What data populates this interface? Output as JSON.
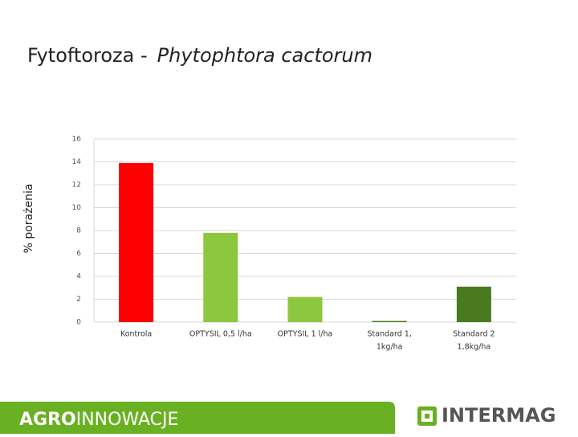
{
  "header": {
    "title": "Fytoftoroza -",
    "title_italic": "Phytophtora cactorum"
  },
  "chart_data": {
    "type": "bar",
    "y_label": "% porażenia",
    "categories": [
      [
        "Kontrola"
      ],
      [
        "OPTYSIL 0,5 l/ha"
      ],
      [
        "OPTYSIL 1 l/ha"
      ],
      [
        "Standard 1,",
        "1kg/ha"
      ],
      [
        "Standard 2",
        "1,8kg/ha"
      ]
    ],
    "values": [
      13.9,
      7.8,
      2.2,
      0.1,
      3.1
    ],
    "colors": [
      "#ff0000",
      "#8dc63f",
      "#8dc63f",
      "#4a7a1e",
      "#4a7a1e"
    ],
    "ylim": [
      0,
      16
    ],
    "yticks": [
      0,
      2,
      4,
      6,
      8,
      10,
      12,
      14,
      16
    ],
    "grid": true
  },
  "footer": {
    "brand_bold": "AGRO",
    "brand": "INNOWACJE",
    "logo": "INTERMAG"
  }
}
